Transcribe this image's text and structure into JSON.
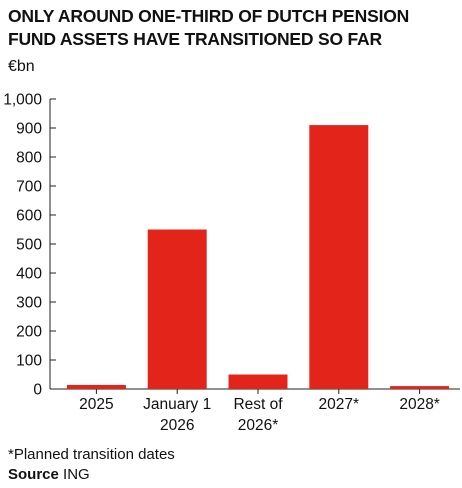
{
  "header": {
    "title": "ONLY AROUND ONE-THIRD OF DUTCH PENSION\nFUND ASSETS HAVE TRANSITIONED SO FAR",
    "unit": "€bn"
  },
  "footer": {
    "footnote": "*Planned transition dates",
    "source_label": "Source",
    "source_value": "ING"
  },
  "colors": {
    "bar": "#e3241b",
    "axis": "#222222",
    "text": "#111111"
  },
  "chart_data": {
    "type": "bar",
    "title": "ONLY AROUND ONE-THIRD OF DUTCH PENSION FUND ASSETS HAVE TRANSITIONED SO FAR",
    "ylabel": "€bn",
    "xlabel": "",
    "categories": [
      [
        "2025"
      ],
      [
        "January 1",
        "2026"
      ],
      [
        "Rest of",
        "2026*"
      ],
      [
        "2027*"
      ],
      [
        "2028*"
      ]
    ],
    "values": [
      14,
      550,
      50,
      910,
      10
    ],
    "ylim": [
      0,
      1000
    ],
    "yticks": [
      0,
      100,
      200,
      300,
      400,
      500,
      600,
      700,
      800,
      900,
      1000
    ],
    "ytick_labels": [
      "0",
      "100",
      "200",
      "300",
      "400",
      "500",
      "600",
      "700",
      "800",
      "900",
      "1,000"
    ],
    "grid": false
  }
}
